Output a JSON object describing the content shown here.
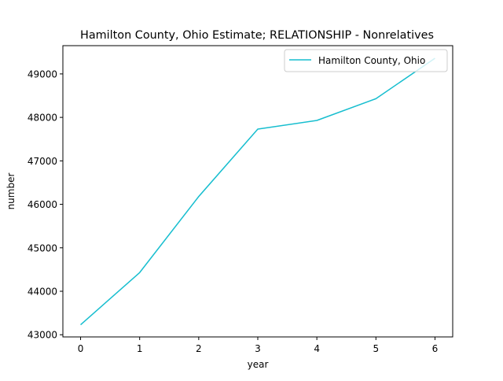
{
  "chart_data": {
    "type": "line",
    "title": "Hamilton County, Ohio Estimate; RELATIONSHIP - Nonrelatives",
    "xlabel": "year",
    "ylabel": "number",
    "x": [
      0,
      1,
      2,
      3,
      4,
      5,
      6
    ],
    "xticks": [
      "0",
      "1",
      "2",
      "3",
      "4",
      "5",
      "6"
    ],
    "yticks": [
      "43000",
      "44000",
      "45000",
      "46000",
      "47000",
      "48000",
      "49000"
    ],
    "ytick_values": [
      43000,
      44000,
      45000,
      46000,
      47000,
      48000,
      49000
    ],
    "xlim": [
      -0.3,
      6.3
    ],
    "ylim": [
      42950,
      49650
    ],
    "grid": false,
    "legend_position": "top-right",
    "series": [
      {
        "name": "Hamilton County, Ohio",
        "color": "#17becf",
        "values": [
          43230,
          44430,
          46180,
          47730,
          47930,
          48430,
          49360
        ]
      }
    ]
  }
}
